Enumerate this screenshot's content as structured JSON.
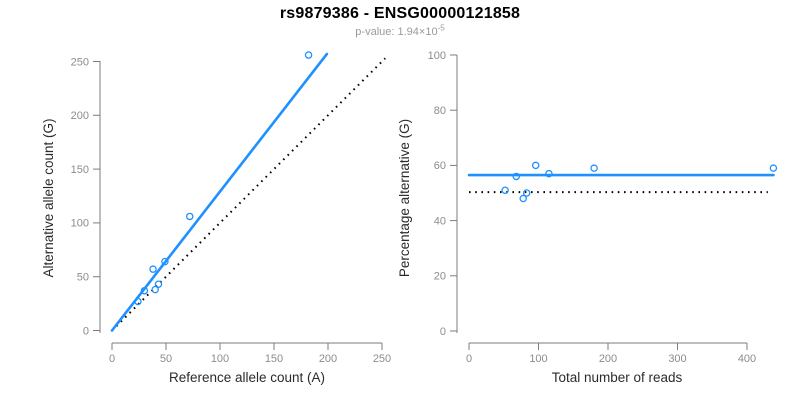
{
  "figure": {
    "title": "rs9879386 - ENSG00000121858",
    "subtitle_prefix": "p-value: 1.94×10",
    "subtitle_exponent": "-5",
    "accent_color": "#1E90FF",
    "reference_line_color": "#000000",
    "axis_line_color": "#7d7d7d",
    "tick_label_color": "#8c8c8c",
    "axis_title_color": "#2b2b2b"
  },
  "chart_data": [
    {
      "type": "scatter",
      "panel": "left",
      "xlabel": "Reference allele count (A)",
      "ylabel": "Alternative allele count (G)",
      "xlim": [
        0,
        250
      ],
      "ylim": [
        0,
        250
      ],
      "xticks": [
        0,
        50,
        100,
        150,
        200,
        250
      ],
      "yticks": [
        0,
        50,
        100,
        150,
        200,
        250
      ],
      "grid": false,
      "legend": "none",
      "points": [
        [
          24,
          27
        ],
        [
          30,
          37
        ],
        [
          38,
          57
        ],
        [
          40,
          38
        ],
        [
          43,
          43
        ],
        [
          49,
          64
        ],
        [
          72,
          106
        ],
        [
          182,
          256
        ]
      ],
      "fit_line": {
        "from": [
          0,
          0
        ],
        "to": [
          199,
          257
        ],
        "style": "solid"
      },
      "reference_line": {
        "from": [
          0,
          0
        ],
        "to": [
          253,
          253
        ],
        "style": "dotted"
      }
    },
    {
      "type": "scatter",
      "panel": "right",
      "xlabel": "Total number of reads",
      "ylabel": "Percentage alternative (G)",
      "xlim": [
        0,
        440
      ],
      "ylim": [
        0,
        100
      ],
      "xticks": [
        0,
        100,
        200,
        300,
        400
      ],
      "yticks": [
        0,
        20,
        40,
        60,
        80,
        100
      ],
      "grid": false,
      "legend": "none",
      "points": [
        [
          52,
          51
        ],
        [
          68,
          56
        ],
        [
          78,
          48
        ],
        [
          83,
          50
        ],
        [
          96,
          60
        ],
        [
          115,
          57
        ],
        [
          180,
          59
        ],
        [
          438,
          59
        ]
      ],
      "fit_line": {
        "from": [
          0,
          56.5
        ],
        "to": [
          438,
          56.5
        ],
        "style": "solid"
      },
      "reference_line": {
        "from": [
          0,
          50.3
        ],
        "to": [
          430,
          50.3
        ],
        "style": "dotted"
      }
    }
  ]
}
